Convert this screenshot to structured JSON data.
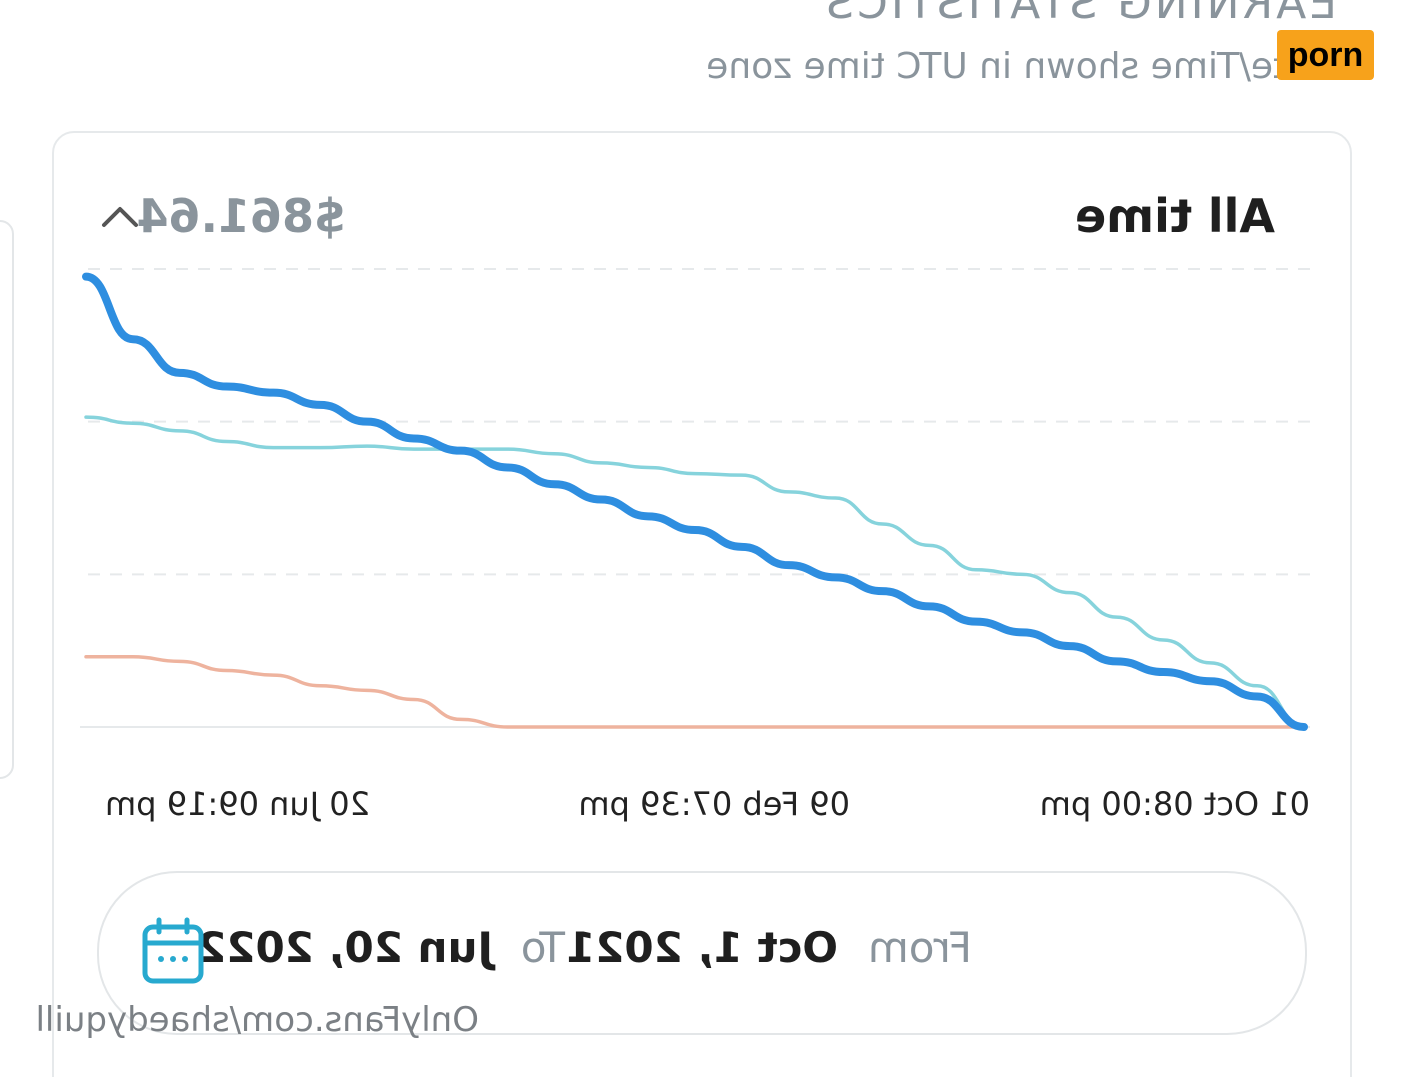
{
  "header": {
    "title": "EARNING STATISTICS",
    "subtitle": "Date/Time shown in UTC time zone"
  },
  "summary": {
    "period": "All time",
    "total": "$861.64"
  },
  "chart_data": {
    "type": "line",
    "x_tick_labels": [
      "01 Oct 08:00 pm",
      "09 Feb 07:39 pm",
      "20 Jun 09:19 pm"
    ],
    "y_range": [
      0,
      3
    ],
    "grid": true,
    "series": [
      {
        "color": "#2e8ee0",
        "values": [
          0.0,
          0.2,
          0.3,
          0.36,
          0.43,
          0.53,
          0.62,
          0.69,
          0.79,
          0.89,
          0.98,
          1.06,
          1.18,
          1.29,
          1.38,
          1.49,
          1.59,
          1.7,
          1.81,
          1.89,
          2.0,
          2.11,
          2.19,
          2.23,
          2.32,
          2.54,
          2.95
        ]
      },
      {
        "color": "#86d3dc",
        "values": [
          0.0,
          0.27,
          0.42,
          0.57,
          0.72,
          0.88,
          1.0,
          1.03,
          1.19,
          1.33,
          1.5,
          1.54,
          1.65,
          1.66,
          1.7,
          1.73,
          1.79,
          1.82,
          1.82,
          1.82,
          1.84,
          1.83,
          1.83,
          1.87,
          1.94,
          1.99,
          2.03
        ]
      },
      {
        "color": "#eeb39e",
        "values": [
          0.0,
          0.0,
          0.0,
          0.0,
          0.0,
          0.0,
          0.0,
          0.0,
          0.0,
          0.0,
          0.0,
          0.0,
          0.0,
          0.0,
          0.0,
          0.0,
          0.0,
          0.0,
          0.05,
          0.18,
          0.24,
          0.27,
          0.34,
          0.37,
          0.43,
          0.46,
          0.46
        ]
      }
    ]
  },
  "range": {
    "from_label": "From",
    "from_date": "Oct 1, 2021",
    "to_label": "To",
    "to_date": "Jun 20, 2022",
    "icon": "calendar-icon"
  },
  "watermark": "OnlyFans.com/shaedyquill",
  "badge": "porn"
}
